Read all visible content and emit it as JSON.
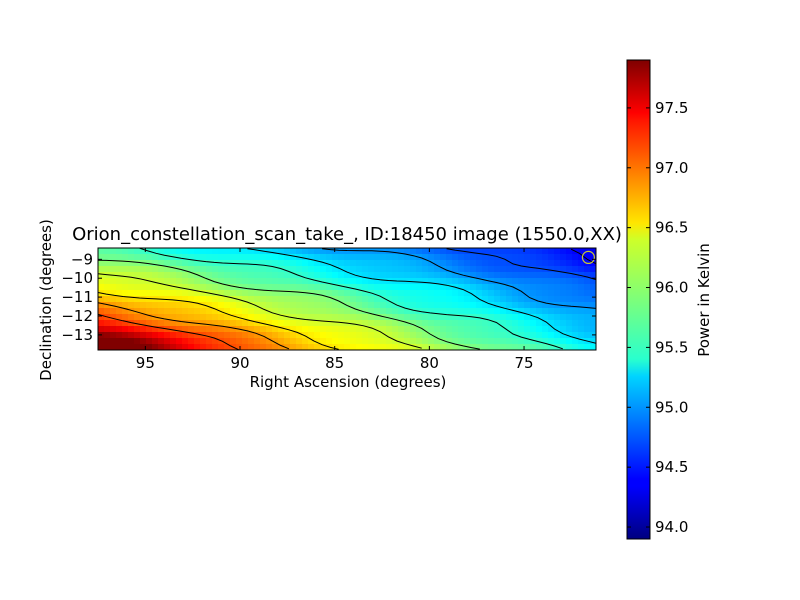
{
  "chart_data": {
    "type": "heatmap",
    "title": "Orion_constellation_scan_take_, ID:18450 image (1550.0,XX)",
    "xlabel": "Right Ascension (degrees)",
    "ylabel": "Declination (degrees)",
    "xlim": [
      97.5,
      71.2
    ],
    "ylim": [
      -13.8,
      -8.4
    ],
    "x_ticks": [
      95,
      90,
      85,
      80,
      75
    ],
    "x_tick_labels": [
      "95",
      "90",
      "85",
      "80",
      "75"
    ],
    "y_ticks": [
      -9,
      -10,
      -11,
      -12,
      -13
    ],
    "y_tick_labels": [
      "−9",
      "−10",
      "−11",
      "−12",
      "−13"
    ],
    "colorbar": {
      "label": "Power in Kelvin",
      "range": [
        93.9,
        97.9
      ],
      "ticks": [
        94.0,
        94.5,
        95.0,
        95.5,
        96.0,
        96.5,
        97.0,
        97.5
      ],
      "tick_labels": [
        "94.0",
        "94.5",
        "95.0",
        "95.5",
        "96.0",
        "96.5",
        "97.0",
        "97.5"
      ],
      "colormap": "jet"
    },
    "field_model": {
      "description": "",
      "levels": [
        94.4,
        94.7,
        95.0,
        95.3,
        95.6,
        95.9,
        96.2,
        96.5,
        96.8,
        97.1
      ]
    },
    "beam_marker": {
      "ra": 71.6,
      "dec": -8.9,
      "color": "#c8c832"
    },
    "grid": false
  }
}
